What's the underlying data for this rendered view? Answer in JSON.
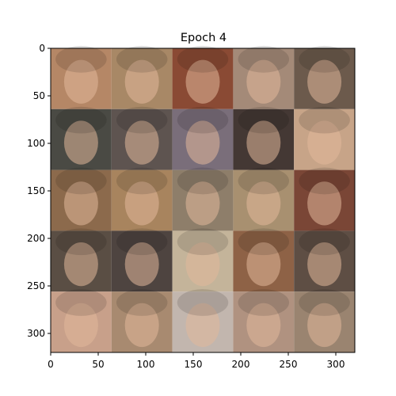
{
  "title": "Epoch 4",
  "axes": {
    "x_range": [
      0,
      320
    ],
    "y_range": [
      0,
      320
    ],
    "y_inverted": true,
    "x_ticks": [
      0,
      50,
      100,
      150,
      200,
      250,
      300
    ],
    "y_ticks": [
      0,
      50,
      100,
      150,
      200,
      250,
      300
    ]
  },
  "grid": {
    "rows": 5,
    "cols": 5,
    "tile_size": 64,
    "tile_tones": [
      [
        "#b58766",
        "#a88866",
        "#8a4a34",
        "#a48a78",
        "#6c5a4c"
      ],
      [
        "#4a4a44",
        "#5e5450",
        "#7a6e7a",
        "#443834",
        "#c7a488"
      ],
      [
        "#8c6a4c",
        "#a8845e",
        "#8e7e6a",
        "#a89070",
        "#7a4636"
      ],
      [
        "#5a4e44",
        "#4e4440",
        "#c4b49a",
        "#8e6246",
        "#5e4e44"
      ],
      [
        "#c8a08a",
        "#a88a70",
        "#c2b6ae",
        "#b09280",
        "#9a8470"
      ]
    ]
  },
  "colors": {
    "axis": "#000000",
    "background": "#ffffff"
  }
}
